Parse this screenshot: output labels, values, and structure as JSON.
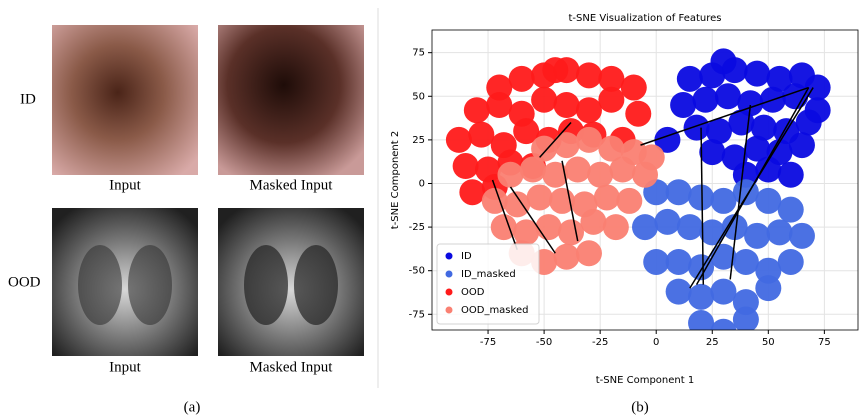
{
  "panel_a": {
    "rows": [
      {
        "label": "ID",
        "captions": [
          "Input",
          "Masked Input"
        ]
      },
      {
        "label": "OOD",
        "captions": [
          "Input",
          "Masked Input"
        ]
      }
    ],
    "caption": "(a)"
  },
  "panel_b_caption": "(b)",
  "chart_data": {
    "type": "scatter",
    "title": "t-SNE Visualization of Features",
    "x_label": "t-SNE Component 1",
    "y_label": "t-SNE Component 2",
    "xlim": [
      -100,
      90
    ],
    "ylim": [
      -84,
      88
    ],
    "xticks": [
      -75,
      -50,
      -25,
      0,
      25,
      50,
      75
    ],
    "yticks": [
      -75,
      -50,
      -25,
      0,
      25,
      50,
      75
    ],
    "grid": true,
    "legend": "lower left",
    "series": [
      {
        "name": "ID",
        "color": "#0a0ae0",
        "x": [
          15,
          25,
          35,
          45,
          55,
          65,
          72,
          12,
          22,
          32,
          42,
          52,
          62,
          72,
          18,
          28,
          38,
          48,
          58,
          68,
          25,
          35,
          45,
          55,
          65,
          40,
          50,
          60,
          5,
          30
        ],
        "y": [
          60,
          62,
          65,
          63,
          60,
          62,
          55,
          45,
          48,
          50,
          46,
          48,
          50,
          42,
          32,
          30,
          35,
          32,
          30,
          35,
          18,
          15,
          20,
          18,
          22,
          5,
          8,
          5,
          25,
          70
        ]
      },
      {
        "name": "ID_masked",
        "color": "#4169e1",
        "x": [
          0,
          10,
          20,
          30,
          40,
          50,
          60,
          -5,
          5,
          15,
          25,
          35,
          45,
          55,
          65,
          0,
          10,
          20,
          30,
          40,
          50,
          60,
          10,
          20,
          30,
          40,
          50,
          20,
          30,
          40
        ],
        "y": [
          -5,
          -5,
          -8,
          -10,
          -5,
          -10,
          -15,
          -25,
          -22,
          -25,
          -28,
          -25,
          -30,
          -28,
          -30,
          -45,
          -45,
          -48,
          -42,
          -45,
          -50,
          -45,
          -62,
          -65,
          -62,
          -68,
          -60,
          -80,
          -85,
          -78
        ]
      },
      {
        "name": "OOD",
        "color": "#ff1a1a",
        "x": [
          -70,
          -60,
          -50,
          -40,
          -30,
          -20,
          -10,
          -80,
          -70,
          -60,
          -50,
          -40,
          -30,
          -20,
          -8,
          -88,
          -78,
          -68,
          -58,
          -48,
          -38,
          -28,
          -15,
          -85,
          -75,
          -65,
          -55,
          -82,
          -72,
          -45
        ],
        "y": [
          55,
          60,
          62,
          65,
          62,
          60,
          55,
          42,
          45,
          40,
          48,
          45,
          42,
          48,
          40,
          25,
          28,
          22,
          30,
          25,
          30,
          28,
          25,
          10,
          8,
          12,
          10,
          -5,
          -2,
          65
        ]
      },
      {
        "name": "OOD_masked",
        "color": "#fa8072",
        "x": [
          -50,
          -40,
          -30,
          -20,
          -10,
          -2,
          -65,
          -55,
          -45,
          -35,
          -25,
          -15,
          -5,
          -72,
          -62,
          -52,
          -42,
          -32,
          -22,
          -12,
          -68,
          -58,
          -48,
          -38,
          -28,
          -18,
          -60,
          -50,
          -40,
          -30
        ],
        "y": [
          20,
          22,
          25,
          20,
          18,
          15,
          5,
          8,
          5,
          8,
          5,
          8,
          5,
          -10,
          -12,
          -8,
          -10,
          -12,
          -8,
          -10,
          -25,
          -28,
          -25,
          -28,
          -22,
          -25,
          -40,
          -45,
          -42,
          -40
        ]
      }
    ],
    "arrows": [
      {
        "x": [
          -38,
          -52
        ],
        "y": [
          35,
          15
        ]
      },
      {
        "x": [
          -42,
          -35
        ],
        "y": [
          13,
          -33
        ]
      },
      {
        "x": [
          -73,
          -62
        ],
        "y": [
          2,
          -38
        ]
      },
      {
        "x": [
          -65,
          -45
        ],
        "y": [
          -2,
          -40
        ]
      },
      {
        "x": [
          -7,
          68
        ],
        "y": [
          22,
          55
        ]
      },
      {
        "x": [
          20,
          21
        ],
        "y": [
          32,
          -58
        ]
      },
      {
        "x": [
          42,
          33
        ],
        "y": [
          45,
          -55
        ]
      },
      {
        "x": [
          70,
          15
        ],
        "y": [
          55,
          -60
        ]
      },
      {
        "x": [
          68,
          18
        ],
        "y": [
          55,
          -58
        ]
      }
    ]
  }
}
